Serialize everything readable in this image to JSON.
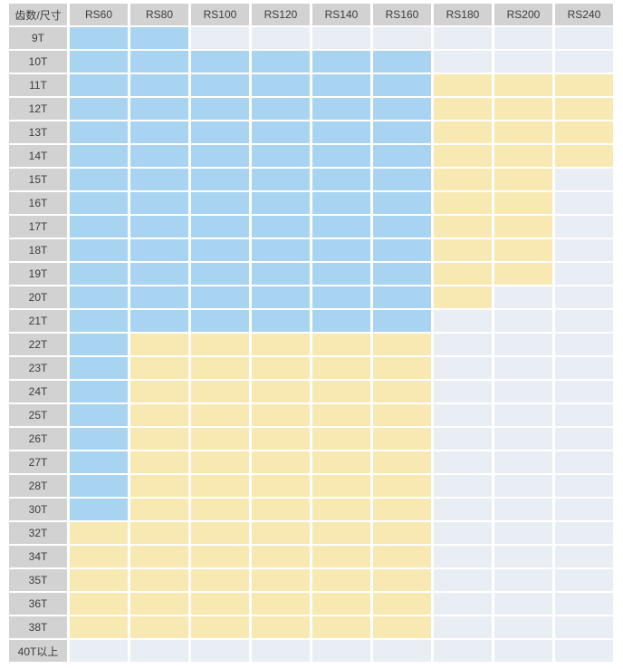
{
  "colors": {
    "header_bg": "#d2d2d2",
    "blue": "#a8d4f1",
    "yellow": "#f8e9b2",
    "empty": "#e9eef5",
    "gap": "#ffffff",
    "text": "#3c3c3c"
  },
  "chart_data": {
    "type": "heatmap",
    "corner_label": "齿数/尺寸",
    "columns": [
      "RS60",
      "RS80",
      "RS100",
      "RS120",
      "RS140",
      "RS160",
      "RS180",
      "RS200",
      "RS240"
    ],
    "rows": [
      "9T",
      "10T",
      "11T",
      "12T",
      "13T",
      "14T",
      "15T",
      "16T",
      "17T",
      "18T",
      "19T",
      "20T",
      "21T",
      "22T",
      "23T",
      "24T",
      "25T",
      "26T",
      "27T",
      "28T",
      "30T",
      "32T",
      "34T",
      "35T",
      "36T",
      "38T",
      "40T以上"
    ],
    "cell_states": [
      [
        "blue",
        "blue",
        "empty",
        "empty",
        "empty",
        "empty",
        "empty",
        "empty",
        "empty"
      ],
      [
        "blue",
        "blue",
        "blue",
        "blue",
        "blue",
        "blue",
        "empty",
        "empty",
        "empty"
      ],
      [
        "blue",
        "blue",
        "blue",
        "blue",
        "blue",
        "blue",
        "yellow",
        "yellow",
        "yellow"
      ],
      [
        "blue",
        "blue",
        "blue",
        "blue",
        "blue",
        "blue",
        "yellow",
        "yellow",
        "yellow"
      ],
      [
        "blue",
        "blue",
        "blue",
        "blue",
        "blue",
        "blue",
        "yellow",
        "yellow",
        "yellow"
      ],
      [
        "blue",
        "blue",
        "blue",
        "blue",
        "blue",
        "blue",
        "yellow",
        "yellow",
        "yellow"
      ],
      [
        "blue",
        "blue",
        "blue",
        "blue",
        "blue",
        "blue",
        "yellow",
        "yellow",
        "empty"
      ],
      [
        "blue",
        "blue",
        "blue",
        "blue",
        "blue",
        "blue",
        "yellow",
        "yellow",
        "empty"
      ],
      [
        "blue",
        "blue",
        "blue",
        "blue",
        "blue",
        "blue",
        "yellow",
        "yellow",
        "empty"
      ],
      [
        "blue",
        "blue",
        "blue",
        "blue",
        "blue",
        "blue",
        "yellow",
        "yellow",
        "empty"
      ],
      [
        "blue",
        "blue",
        "blue",
        "blue",
        "blue",
        "blue",
        "yellow",
        "yellow",
        "empty"
      ],
      [
        "blue",
        "blue",
        "blue",
        "blue",
        "blue",
        "blue",
        "yellow",
        "empty",
        "empty"
      ],
      [
        "blue",
        "blue",
        "blue",
        "blue",
        "blue",
        "blue",
        "empty",
        "empty",
        "empty"
      ],
      [
        "blue",
        "yellow",
        "yellow",
        "yellow",
        "yellow",
        "yellow",
        "empty",
        "empty",
        "empty"
      ],
      [
        "blue",
        "yellow",
        "yellow",
        "yellow",
        "yellow",
        "yellow",
        "empty",
        "empty",
        "empty"
      ],
      [
        "blue",
        "yellow",
        "yellow",
        "yellow",
        "yellow",
        "yellow",
        "empty",
        "empty",
        "empty"
      ],
      [
        "blue",
        "yellow",
        "yellow",
        "yellow",
        "yellow",
        "yellow",
        "empty",
        "empty",
        "empty"
      ],
      [
        "blue",
        "yellow",
        "yellow",
        "yellow",
        "yellow",
        "yellow",
        "empty",
        "empty",
        "empty"
      ],
      [
        "blue",
        "yellow",
        "yellow",
        "yellow",
        "yellow",
        "yellow",
        "empty",
        "empty",
        "empty"
      ],
      [
        "blue",
        "yellow",
        "yellow",
        "yellow",
        "yellow",
        "yellow",
        "empty",
        "empty",
        "empty"
      ],
      [
        "blue",
        "yellow",
        "yellow",
        "yellow",
        "yellow",
        "yellow",
        "empty",
        "empty",
        "empty"
      ],
      [
        "yellow",
        "yellow",
        "yellow",
        "yellow",
        "yellow",
        "yellow",
        "empty",
        "empty",
        "empty"
      ],
      [
        "yellow",
        "yellow",
        "yellow",
        "yellow",
        "yellow",
        "yellow",
        "empty",
        "empty",
        "empty"
      ],
      [
        "yellow",
        "yellow",
        "yellow",
        "yellow",
        "yellow",
        "yellow",
        "empty",
        "empty",
        "empty"
      ],
      [
        "yellow",
        "yellow",
        "yellow",
        "yellow",
        "yellow",
        "yellow",
        "empty",
        "empty",
        "empty"
      ],
      [
        "yellow",
        "yellow",
        "yellow",
        "yellow",
        "yellow",
        "yellow",
        "empty",
        "empty",
        "empty"
      ],
      [
        "empty",
        "empty",
        "empty",
        "empty",
        "empty",
        "empty",
        "empty",
        "empty",
        "empty"
      ]
    ]
  }
}
